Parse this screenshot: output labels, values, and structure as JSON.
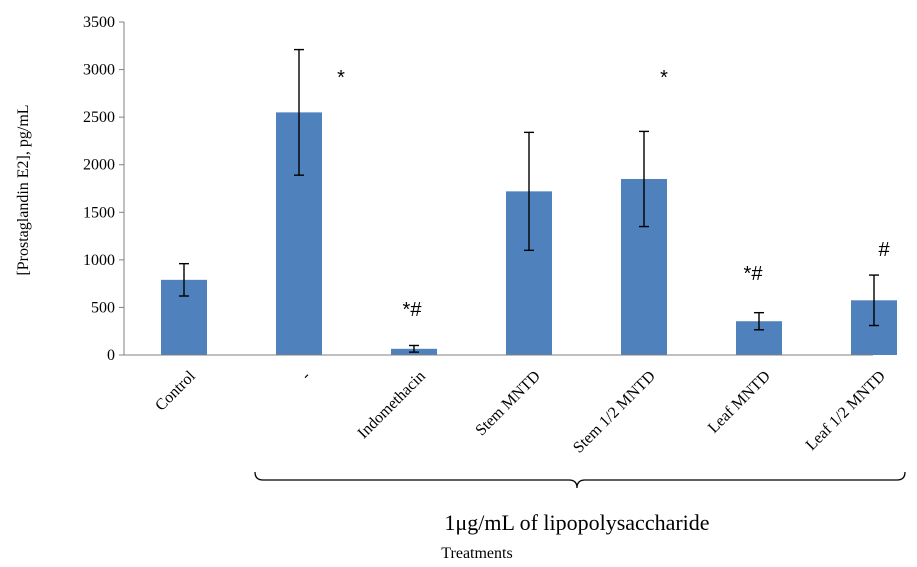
{
  "chart_data": {
    "type": "bar",
    "title": "",
    "ylabel": "[Prostaglandin E2], pg/mL",
    "xlabel": "Treatments",
    "group_label": "1μg/mL of lipopolysaccharide",
    "ylim": [
      0,
      3500
    ],
    "yticks": [
      0,
      500,
      1000,
      1500,
      2000,
      2500,
      3000,
      3500
    ],
    "grid": false,
    "legend": "none",
    "bar_color": "#4f81bd",
    "categories": [
      "Control",
      "-",
      "Indomethacin",
      "Stem MNTD",
      "Stem 1/2 MNTD",
      "Leaf MNTD",
      "Leaf 1/2 MNTD"
    ],
    "values": [
      790,
      2550,
      65,
      1720,
      1850,
      355,
      575
    ],
    "errors": [
      170,
      660,
      35,
      620,
      500,
      90,
      265
    ],
    "annotations": [
      "",
      "*",
      "*#",
      "",
      "*",
      "*#",
      "#"
    ]
  }
}
